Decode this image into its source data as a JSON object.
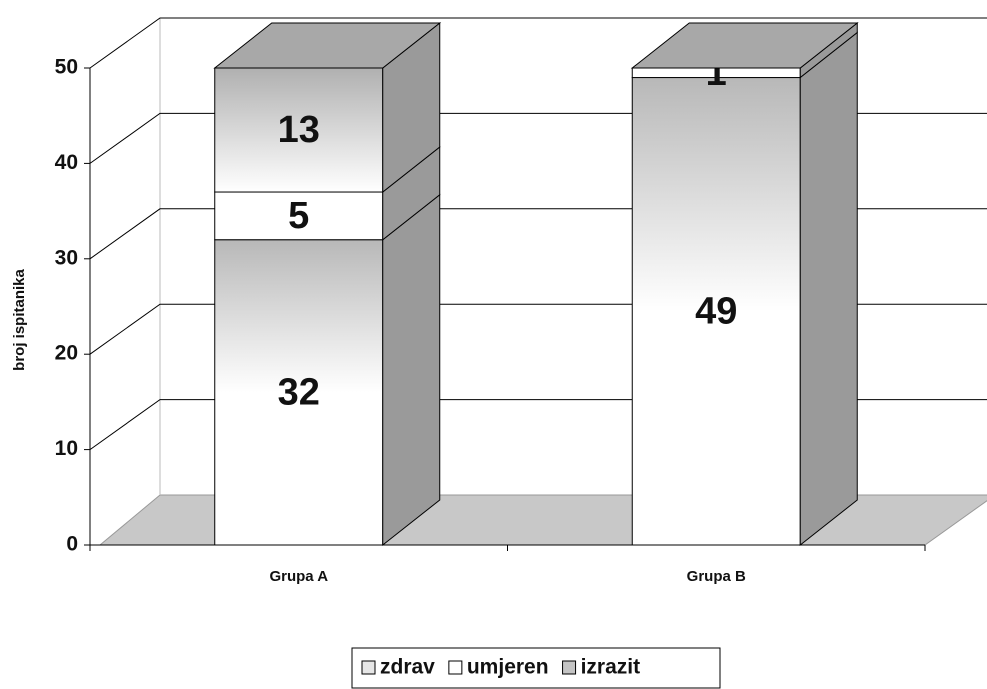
{
  "chart_data": {
    "type": "bar3d_stacked",
    "y_label": "broj ispitanika",
    "categories": [
      "Grupa A",
      "Grupa B"
    ],
    "series": [
      {
        "name": "zdrav",
        "color": "#e6e6e6",
        "values": [
          32,
          49
        ]
      },
      {
        "name": "umjeren",
        "color": "#ffffff",
        "values": [
          5,
          1
        ]
      },
      {
        "name": "izrazit",
        "color": "#c4c4c4",
        "values": [
          13,
          null
        ]
      }
    ],
    "ylim": [
      0,
      50
    ],
    "yticks": [
      0,
      10,
      20,
      30,
      40,
      50
    ],
    "grid": true
  }
}
